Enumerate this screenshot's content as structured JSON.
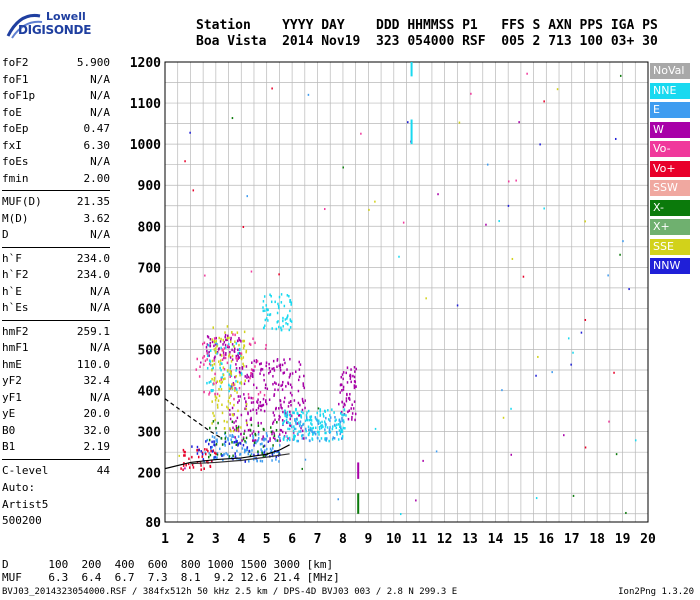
{
  "logo": {
    "brand_top": "Lowell",
    "brand_main": "DIGISONDE"
  },
  "header": {
    "line1": "Station    YYYY DAY    DDD HHMMSS P1   FFS S AXN PPS IGA PS",
    "line2": "Boa Vista  2014 Nov19  323 054000 RSF  005 2 713 100 03+ 30"
  },
  "params": [
    {
      "group": 1,
      "key": "foF2",
      "value": "5.900"
    },
    {
      "group": 1,
      "key": "foF1",
      "value": "N/A"
    },
    {
      "group": 1,
      "key": "foF1p",
      "value": "N/A"
    },
    {
      "group": 1,
      "key": "foE",
      "value": "N/A"
    },
    {
      "group": 1,
      "key": "foEp",
      "value": "0.47"
    },
    {
      "group": 1,
      "key": "fxI",
      "value": "6.30"
    },
    {
      "group": 1,
      "key": "foEs",
      "value": "N/A"
    },
    {
      "group": 1,
      "key": "fmin",
      "value": "2.00"
    },
    {
      "group": 2,
      "key": "MUF(D)",
      "value": "21.35"
    },
    {
      "group": 2,
      "key": "M(D)",
      "value": "3.62"
    },
    {
      "group": 2,
      "key": "D",
      "value": "N/A"
    },
    {
      "group": 3,
      "key": "h`F",
      "value": "234.0"
    },
    {
      "group": 3,
      "key": "h`F2",
      "value": "234.0"
    },
    {
      "group": 3,
      "key": "h`E",
      "value": "N/A"
    },
    {
      "group": 3,
      "key": "h`Es",
      "value": "N/A"
    },
    {
      "group": 4,
      "key": "hmF2",
      "value": "259.1"
    },
    {
      "group": 4,
      "key": "hmF1",
      "value": "N/A"
    },
    {
      "group": 4,
      "key": "hmE",
      "value": "110.0"
    },
    {
      "group": 4,
      "key": "yF2",
      "value": "32.4"
    },
    {
      "group": 4,
      "key": "yF1",
      "value": "N/A"
    },
    {
      "group": 4,
      "key": "yE",
      "value": "20.0"
    },
    {
      "group": 4,
      "key": "B0",
      "value": "32.0"
    },
    {
      "group": 4,
      "key": "B1",
      "value": "2.19"
    },
    {
      "group": 5,
      "key": "C-level",
      "value": "44"
    }
  ],
  "auto": {
    "line1": "Auto:",
    "line2": "Artist5",
    "line3": "500200"
  },
  "distance_table": {
    "d_row": "D      100  200  400  600  800 1000 1500 3000 [km]",
    "muf_row": "MUF    6.3  6.4  6.7  7.3  8.1  9.2 12.6 21.4 [MHz]"
  },
  "footer": {
    "left": "BVJ03_2014323054000.RSF / 384fx512h 50 kHz 2.5 km / DPS-4D BVJ03 003 / 2.8 N 299.3 E",
    "right": "Ion2Png 1.3.20"
  },
  "legend": [
    {
      "label": "NoVal",
      "color": "#a8a8a8"
    },
    {
      "label": "NNE",
      "color": "#19d9f0"
    },
    {
      "label": "E",
      "color": "#3f9cf0"
    },
    {
      "label": "W",
      "color": "#a800a8"
    },
    {
      "label": "Vo-",
      "color": "#f0399c"
    },
    {
      "label": "Vo+",
      "color": "#e8002a"
    },
    {
      "label": "SSW",
      "color": "#f0a8a0"
    },
    {
      "label": "X-",
      "color": "#0b7a0b"
    },
    {
      "label": "X+",
      "color": "#6fb06f"
    },
    {
      "label": "SSE",
      "color": "#d2d21a"
    },
    {
      "label": "NNW",
      "color": "#1f1fd8"
    }
  ],
  "chart_data": {
    "type": "scatter",
    "title": "",
    "xlabel": "",
    "ylabel": "",
    "xlim": [
      1,
      20
    ],
    "ylim": [
      80,
      1200
    ],
    "x_ticks": [
      1,
      2,
      3,
      4,
      5,
      6,
      7,
      8,
      9,
      10,
      11,
      12,
      13,
      14,
      15,
      16,
      17,
      18,
      19,
      20
    ],
    "y_ticks": [
      80,
      200,
      300,
      400,
      500,
      600,
      700,
      800,
      900,
      1000,
      1100,
      1200
    ],
    "grid": true,
    "series": [
      {
        "name": "W",
        "color": "#a800a8",
        "clusters": [
          {
            "f": [
              3.5,
              6.5
            ],
            "h": [
              280,
              480
            ],
            "n": 260
          },
          {
            "f": [
              7.8,
              8.5
            ],
            "h": [
              330,
              460
            ],
            "n": 60
          },
          {
            "f": [
              2.6,
              4.0
            ],
            "h": [
              480,
              540
            ],
            "n": 60
          }
        ]
      },
      {
        "name": "NNE",
        "color": "#19d9f0",
        "clusters": [
          {
            "f": [
              5.6,
              8.1
            ],
            "h": [
              280,
              360
            ],
            "n": 170
          },
          {
            "f": [
              4.8,
              6.0
            ],
            "h": [
              550,
              640
            ],
            "n": 60
          },
          {
            "f": [
              2.6,
              4.0
            ],
            "h": [
              400,
              520
            ],
            "n": 60
          }
        ]
      },
      {
        "name": "E",
        "color": "#3f9cf0",
        "clusters": [
          {
            "f": [
              2.5,
              5.5
            ],
            "h": [
              230,
              300
            ],
            "n": 110
          },
          {
            "f": [
              6.0,
              8.0
            ],
            "h": [
              280,
              340
            ],
            "n": 50
          }
        ]
      },
      {
        "name": "SSE",
        "color": "#d2d21a",
        "clusters": [
          {
            "f": [
              2.8,
              4.2
            ],
            "h": [
              300,
              560
            ],
            "n": 120
          }
        ]
      },
      {
        "name": "Vo-",
        "color": "#f0399c",
        "clusters": [
          {
            "f": [
              2.2,
              5.0
            ],
            "h": [
              380,
              540
            ],
            "n": 60
          }
        ]
      },
      {
        "name": "Vo+",
        "color": "#e8002a",
        "clusters": [
          {
            "f": [
              1.6,
              3.0
            ],
            "h": [
              210,
              260
            ],
            "n": 40
          }
        ]
      },
      {
        "name": "X-",
        "color": "#0b7a0b",
        "clusters": [
          {
            "f": [
              2.5,
              5.5
            ],
            "h": [
              240,
              330
            ],
            "n": 50
          }
        ]
      },
      {
        "name": "NNW",
        "color": "#1f1fd8",
        "clusters": [
          {
            "f": [
              2.0,
              5.5
            ],
            "h": [
              230,
              280
            ],
            "n": 50
          }
        ]
      }
    ],
    "vertical_streaks": [
      {
        "f": 10.7,
        "h": [
          1165,
          1200
        ],
        "color": "#19d9f0"
      },
      {
        "f": 10.7,
        "h": [
          1000,
          1060
        ],
        "color": "#19d9f0"
      },
      {
        "f": 8.6,
        "h": [
          185,
          225
        ],
        "color": "#a800a8"
      },
      {
        "f": 8.6,
        "h": [
          100,
          150
        ],
        "color": "#0b7a0b"
      }
    ],
    "profile_trace": [
      {
        "f": 1.0,
        "h": 210
      },
      {
        "f": 2.0,
        "h": 225
      },
      {
        "f": 3.0,
        "h": 232
      },
      {
        "f": 4.0,
        "h": 236
      },
      {
        "f": 5.0,
        "h": 245
      },
      {
        "f": 5.5,
        "h": 255
      },
      {
        "f": 5.9,
        "h": 268
      }
    ],
    "profile_trace_2": [
      {
        "f": 2.0,
        "h": 222
      },
      {
        "f": 3.0,
        "h": 225
      },
      {
        "f": 4.0,
        "h": 230
      },
      {
        "f": 5.0,
        "h": 238
      },
      {
        "f": 5.9,
        "h": 246
      }
    ],
    "dashed_trace": [
      {
        "f": 1.0,
        "h": 380
      },
      {
        "f": 2.0,
        "h": 335
      },
      {
        "f": 2.8,
        "h": 300
      },
      {
        "f": 3.2,
        "h": 285
      }
    ]
  }
}
